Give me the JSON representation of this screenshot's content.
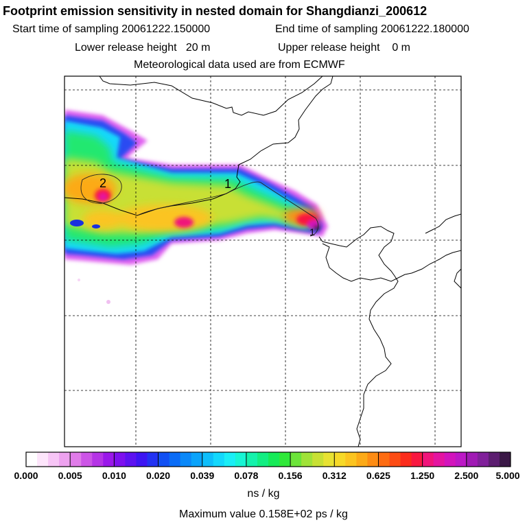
{
  "header": {
    "title": "Footprint emission sensitivity in nested domain for Shangdianzi_200612",
    "start_label": "Start time of sampling 20061222.150000",
    "end_label": "End time of sampling 20061222.180000",
    "lower_label": "Lower release height   20 m",
    "upper_label": "Upper release height    0 m",
    "met_label": "Meteorological data used are from ECMWF"
  },
  "map": {
    "contour_labels": [
      "2",
      "1",
      "1"
    ]
  },
  "colorbar": {
    "ticks": [
      "0.000",
      "0.005",
      "0.010",
      "0.020",
      "0.039",
      "0.078",
      "0.156",
      "0.312",
      "0.625",
      "1.250",
      "2.500",
      "5.000"
    ],
    "colors": [
      "#ffffff",
      "#fde5fb",
      "#f7c5f6",
      "#eda2ef",
      "#e07ce9",
      "#cc55e6",
      "#b534e6",
      "#9a18ea",
      "#7d10ee",
      "#5d12f0",
      "#3d15f2",
      "#2232f2",
      "#1150f3",
      "#0a6cf6",
      "#0a88f8",
      "#0aa3fa",
      "#0ebefb",
      "#13d8fc",
      "#1aeef6",
      "#18f5d4",
      "#14f2ac",
      "#12ee82",
      "#16ea58",
      "#30e83a",
      "#6ce43a",
      "#a0e238",
      "#c8e034",
      "#e8e232",
      "#f6d928",
      "#fbc420",
      "#fcaa18",
      "#fd8c14",
      "#fd6c12",
      "#fc4c14",
      "#fb2c1c",
      "#f81840",
      "#f0147a",
      "#e414a0",
      "#d214bc",
      "#bc18c6",
      "#a01ab4",
      "#80209a",
      "#5c1e70",
      "#3a1846"
    ],
    "units": "ns / kg",
    "max_label": "Maximum value  0.158E+02 ps / kg"
  }
}
